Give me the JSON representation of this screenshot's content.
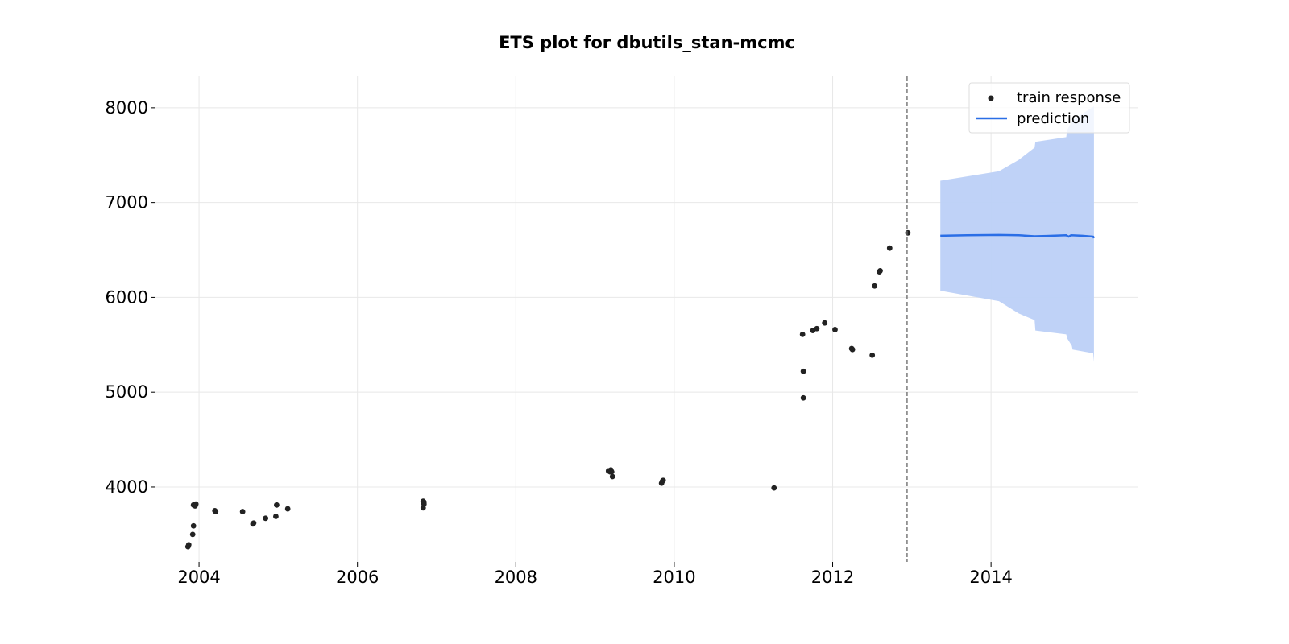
{
  "chart_data": {
    "type": "scatter",
    "title": "ETS plot for dbutils_stan-mcmc",
    "xlabel": "",
    "ylabel": "",
    "xlim": [
      2003.45,
      2015.85
    ],
    "ylim": [
      3210,
      8330
    ],
    "x_ticks": [
      2004,
      2006,
      2008,
      2010,
      2012,
      2014
    ],
    "x_tick_labels": [
      "2004",
      "2006",
      "2008",
      "2010",
      "2012",
      "2014"
    ],
    "y_ticks": [
      4000,
      5000,
      6000,
      7000,
      8000
    ],
    "y_tick_labels": [
      "4000",
      "5000",
      "6000",
      "7000",
      "8000"
    ],
    "grid": true,
    "legend_position": "top-right",
    "train_end": 2012.94,
    "series": [
      {
        "name": "train response",
        "kind": "scatter",
        "color": "#222222",
        "x": [
          2003.86,
          2003.87,
          2003.92,
          2003.93,
          2003.95,
          2003.93,
          2003.96,
          2004.2,
          2004.21,
          2004.55,
          2004.68,
          2004.69,
          2004.84,
          2004.97,
          2004.98,
          2005.12,
          2006.83,
          2006.84,
          2006.83,
          2006.84,
          2009.17,
          2009.19,
          2009.2,
          2009.21,
          2009.22,
          2009.84,
          2009.85,
          2009.86,
          2011.26,
          2011.62,
          2011.63,
          2011.63,
          2011.75,
          2011.8,
          2011.9,
          2012.03,
          2012.24,
          2012.25,
          2012.5,
          2012.53,
          2012.59,
          2012.6,
          2012.72,
          2012.95
        ],
        "y": [
          3370,
          3390,
          3500,
          3590,
          3800,
          3810,
          3820,
          3750,
          3740,
          3740,
          3610,
          3620,
          3670,
          3690,
          3810,
          3770,
          3850,
          3820,
          3780,
          3840,
          4170,
          4160,
          4180,
          4160,
          4110,
          4040,
          4060,
          4070,
          3990,
          5610,
          5220,
          4940,
          5650,
          5670,
          5730,
          5660,
          5460,
          5450,
          5390,
          6120,
          6270,
          6280,
          6520,
          6680
        ]
      },
      {
        "name": "prediction",
        "kind": "line",
        "color": "#2a6ee6",
        "x": [
          2013.36,
          2013.7,
          2014.1,
          2014.35,
          2014.55,
          2014.7,
          2014.95,
          2014.98,
          2015.01,
          2015.15,
          2015.29,
          2015.3
        ],
        "y": [
          6650,
          6655,
          6658,
          6655,
          6645,
          6648,
          6655,
          6640,
          6655,
          6650,
          6640,
          6625
        ]
      },
      {
        "name": "",
        "kind": "band",
        "color": "#bcd0f7",
        "x": [
          2013.36,
          2014.1,
          2014.35,
          2014.55,
          2014.56,
          2014.95,
          2014.96,
          2015.02,
          2015.03,
          2015.29,
          2015.3
        ],
        "upper": [
          7230,
          7330,
          7450,
          7580,
          7640,
          7690,
          7760,
          7860,
          7870,
          8010,
          8020
        ],
        "lower": [
          6070,
          5960,
          5830,
          5760,
          5650,
          5610,
          5570,
          5490,
          5450,
          5410,
          5320
        ]
      }
    ]
  }
}
